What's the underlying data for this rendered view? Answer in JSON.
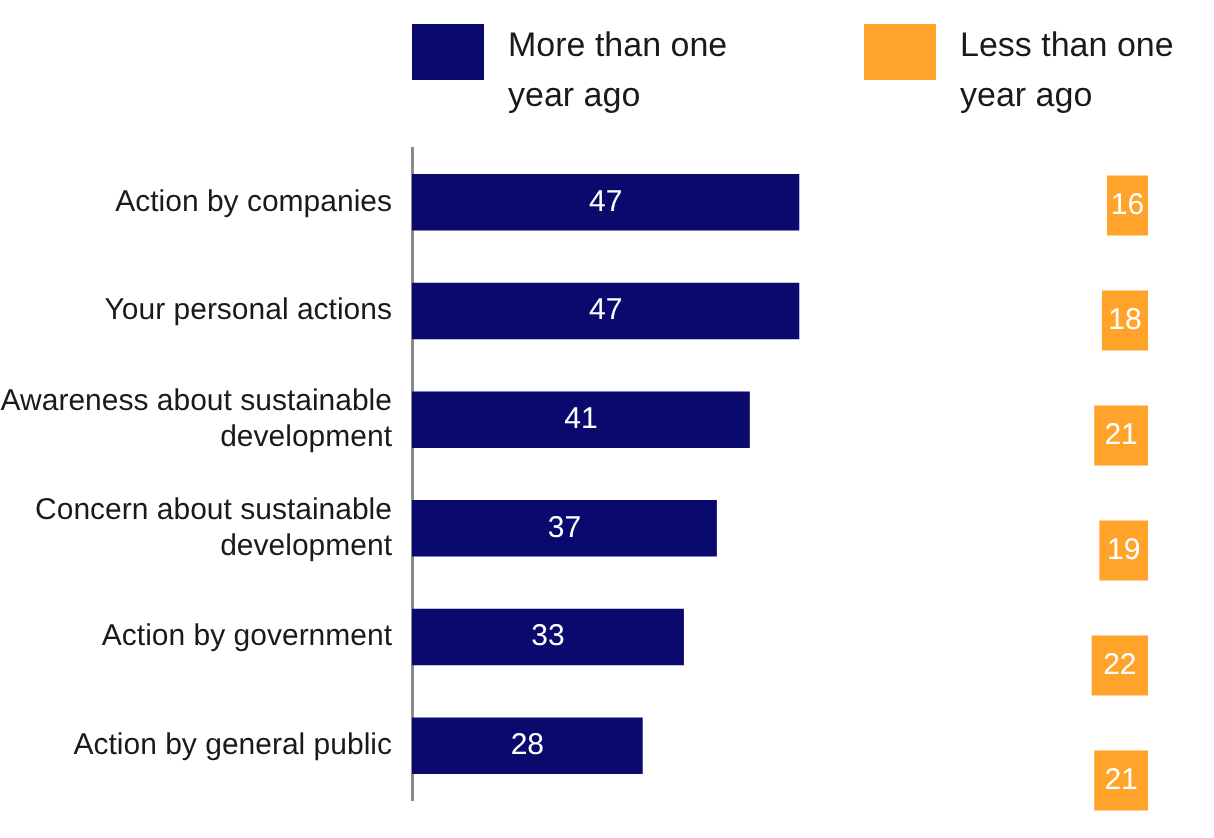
{
  "chart_data": [
    {
      "type": "bar",
      "orientation": "horizontal",
      "categories": [
        "Action by companies",
        "Your personal actions",
        "Awareness about sustainable development",
        "Concern about sustainable development",
        "Action by government",
        "Action by general public"
      ],
      "series": [
        {
          "name": "More than one year ago",
          "color": "#0a0a6e",
          "values": [
            47,
            47,
            41,
            37,
            33,
            28
          ]
        }
      ],
      "tick_labels": "y",
      "data_labels": true,
      "legend": "top"
    },
    {
      "type": "bar",
      "orientation": "horizontal",
      "series": [
        {
          "name": "Less than one year ago",
          "color": "#ffa32b",
          "values": [
            16,
            18,
            21,
            19,
            22,
            21
          ]
        }
      ],
      "tick_labels": false,
      "data_labels": true,
      "legend": "top"
    }
  ]
}
